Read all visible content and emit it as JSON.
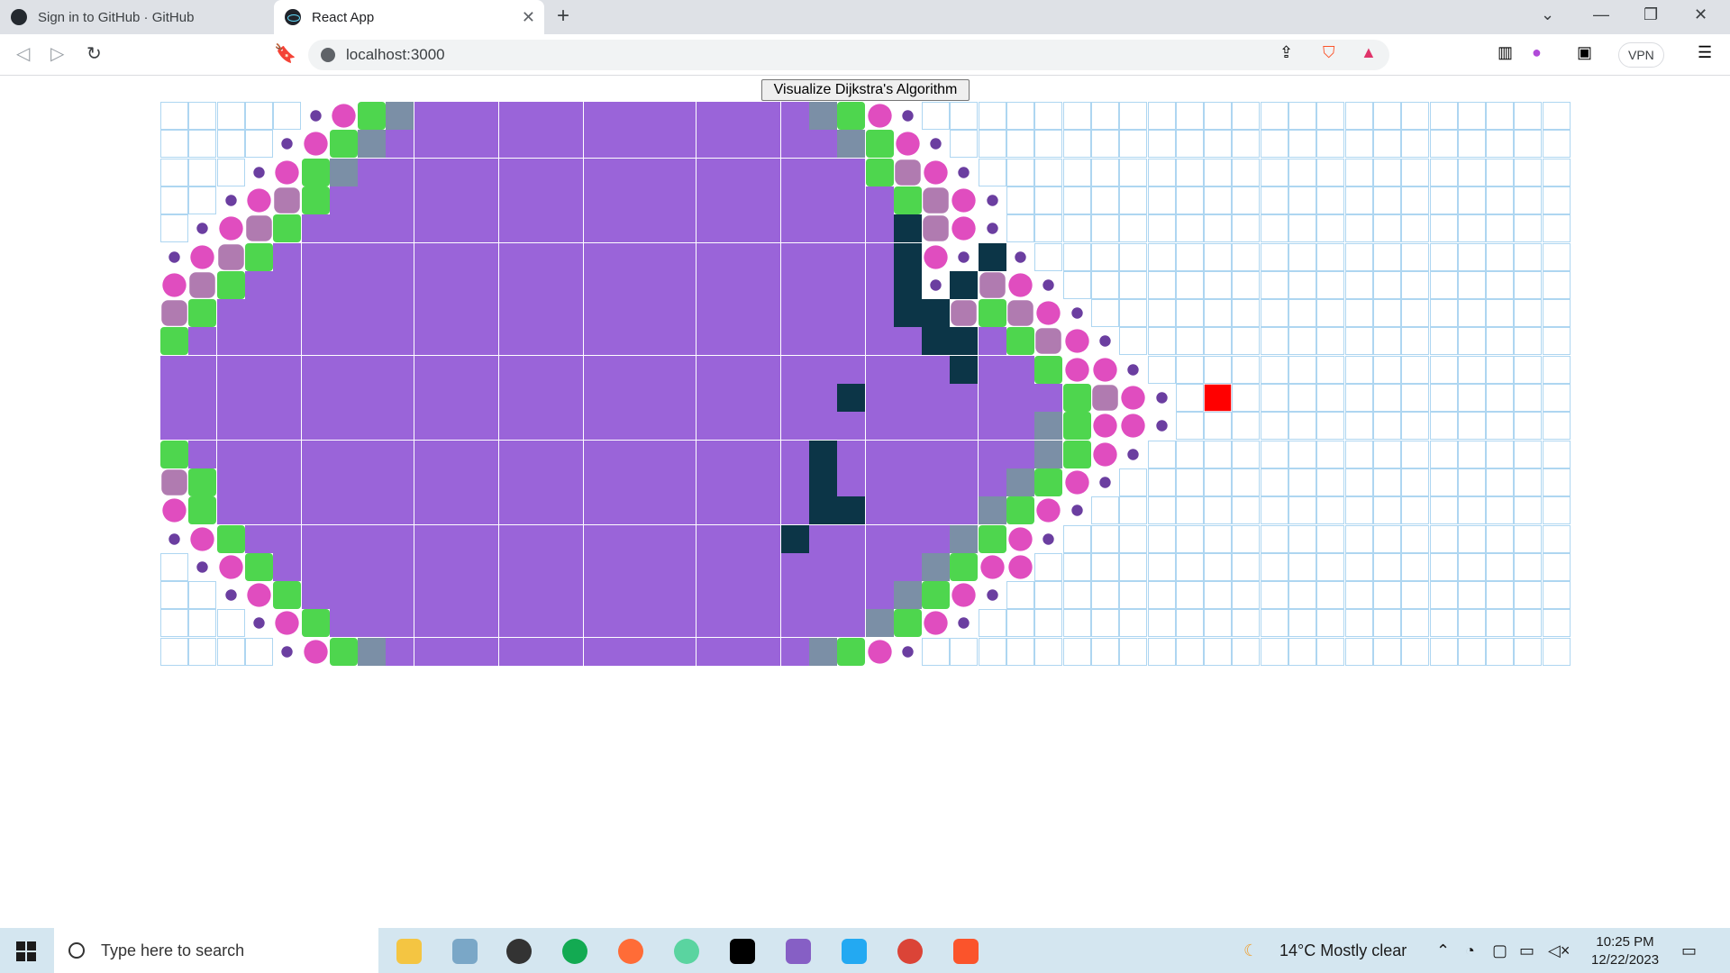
{
  "browser": {
    "tabs": [
      {
        "title": "Sign in to GitHub · GitHub",
        "active": false,
        "icon": "github-icon"
      },
      {
        "title": "React App",
        "active": true,
        "icon": "react-icon"
      }
    ],
    "address": "localhost:3000",
    "vpn_label": "VPN"
  },
  "page": {
    "button_label": "Visualize Dijkstra's Algorithm"
  },
  "grid": {
    "rows": 20,
    "cols": 50,
    "colors": {
      "empty": "#ffffff",
      "empty_border": "#aed6f1",
      "visited": "#9a64d9",
      "visited_slate": "#7b8fa6",
      "frontier_green": "#4ed64e",
      "frontier_pink": "#e04dbf",
      "frontier_mauve": "#b07bb0",
      "dot": "#6b3ea0",
      "wall": "#0c3547",
      "target": "#ff0000"
    },
    "row_data": [
      "EEEEEdpgsVVVVVVVVVVVVVVsgpdEEEEEEEEEEEEEEEEEEEEEEE",
      "EEEEdpgsVVVVVVVVVVVVVVVVsgpdEEEEEEEEEEEEEEEEEEEEEE",
      "EEEdpgsVVVVVVVVVVVVVVVVVVgmpdEEEEEEEEEEEEEEEEEEEEE",
      "EEdpmgVVVVVVVVVVVVVVVVVVVVgmpdEEEEEEEEEEEEEEEEEEEE",
      "EdpmgVVVVVVVVVVVVVVVVVVVVVWmpdEEEEEEEEEEEEEEEEEEEE",
      "dpmgVVVVVVVVVVVVVVVVVVVVVVWpdWdEEEEEEEEEEEEEEEEEEE",
      "pmgVVVVVVVVVVVVVVVVVVVVVVVWdWmpdEEEEEEEEEEEEEEEEEE",
      "mgVVVVVVVVVVVVVVVVVVVVVVVVWWmgmpdEEEEEEEEEEEEEEEEE",
      "gVVVVVVVVVVVVVVVVVVVVVVVVVVWWVgmpdEEEEEEEEEEEEEEEE",
      "VVVVVVVVVVVVVVVVVVVVVVVVVVVVWVVgppdEEEEEEEEEEEEEEE",
      "VVVVVVVVVVVVVVVVVVVVVVVVWVVVVVVVgmpdETEEEEEEEEEEEE",
      "VVVVVVVVVVVVVVVVVVVVVVVVVVVVVVVsgppdEEEEEEEEEEEEEE",
      "gVVVVVVVVVVVVVVVVVVVVVVWVVVVVVVsgpdEEEEEEEEEEEEEEE",
      "mgVVVVVVVVVVVVVVVVVVVVVWVVVVVVsgpdEEEEEEEEEEEEEEEE",
      "pgVVVVVVVVVVVVVVVVVVVVVWWVVVVsgpdEEEEEEEEEEEEEEEEE",
      "dpgVVVVVVVVVVVVVVVVVVVWVVVVVsgpdEEEEEEEEEEEEEEEEEE",
      "Edpg VVVVVVVVVVVVVVVVVVVVVVsgppEEEEEEEEEEEEEEEEEEEE",
      "EEdpgVVVVVVVVVVVVVVVVVVVVVsgpdEEEEEEEEEEEEEEEEEEEE",
      "EEEdpgVVVVVVVVVVVVVVVVVVVsgpdEEEEEEEEEEEEEEEEEEEEE",
      "EEEEdpgsVVVVVVVVVVVVVVVsgpdEEEEEEEEEEEEEEEEEEEEEEE"
    ]
  },
  "taskbar": {
    "search_placeholder": "Type here to search",
    "weather": "14°C  Mostly clear",
    "time": "10:25 PM",
    "date": "12/22/2023"
  }
}
